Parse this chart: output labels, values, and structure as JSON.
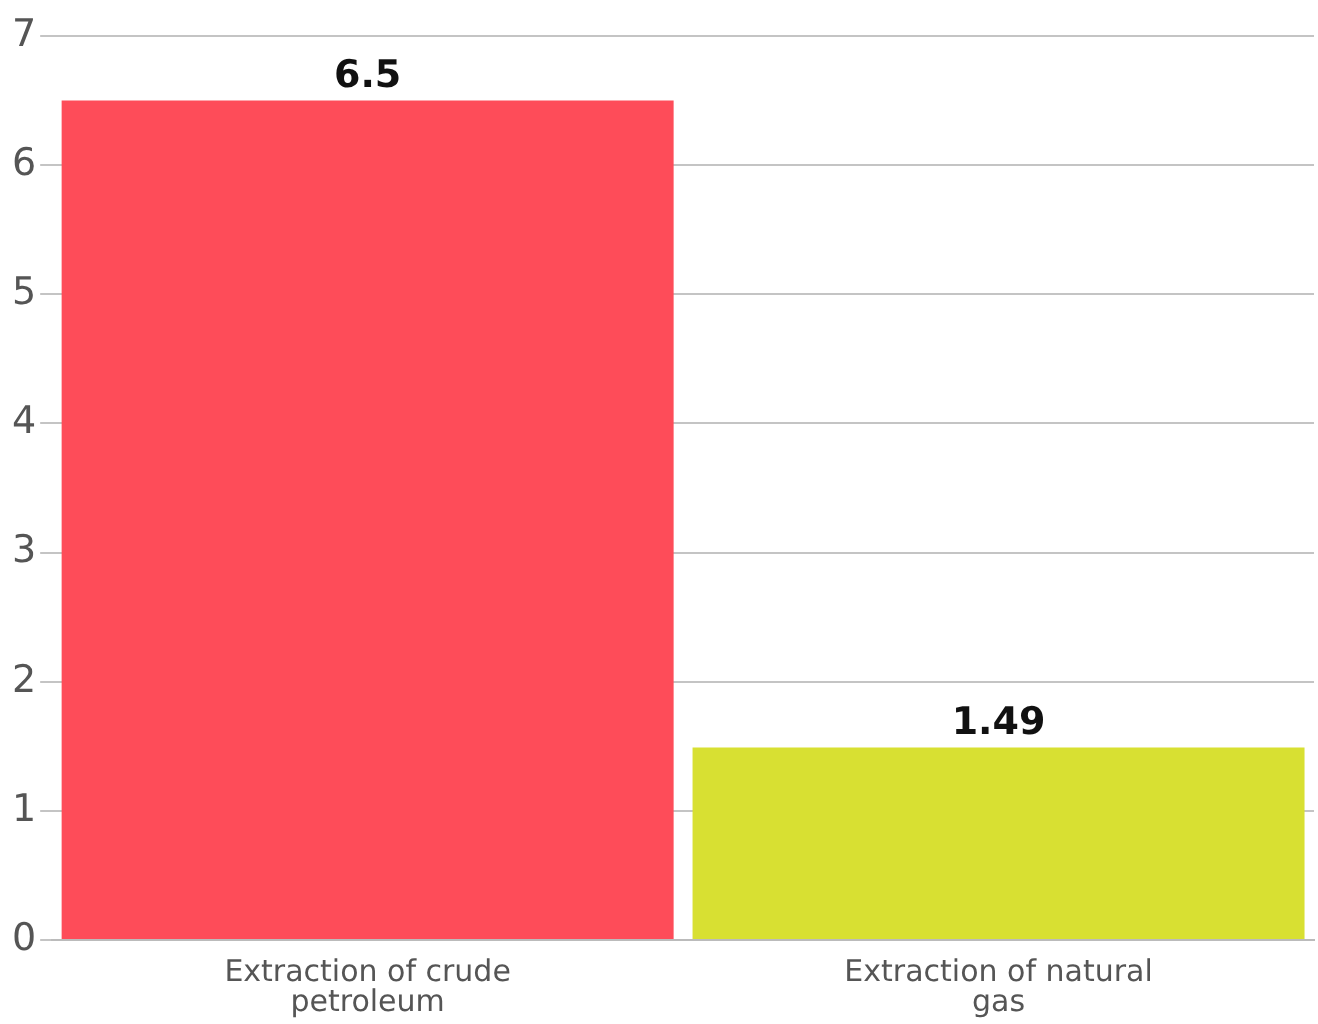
{
  "chart_data": {
    "type": "bar",
    "categories": [
      "Extraction of crude petroleum",
      "Extraction of natural gas"
    ],
    "values": [
      6.5,
      1.49
    ],
    "colors": [
      "#fe4c59",
      "#d8e032"
    ],
    "ylim": [
      0,
      7
    ],
    "yticks": [
      0,
      1,
      2,
      3,
      4,
      5,
      6,
      7
    ],
    "grid": "y",
    "legend": false,
    "data_labels": true
  }
}
